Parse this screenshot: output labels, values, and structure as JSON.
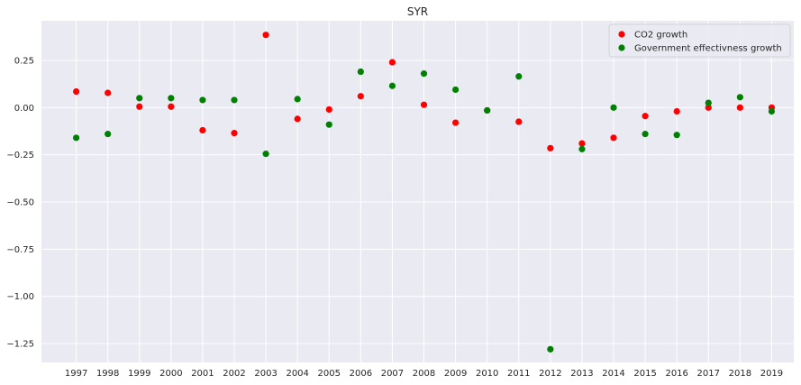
{
  "chart_data": {
    "type": "scatter",
    "title": "SYR",
    "xlabel": "",
    "ylabel": "",
    "x": [
      "1997",
      "1998",
      "1999",
      "2000",
      "2001",
      "2002",
      "2003",
      "2004",
      "2005",
      "2006",
      "2007",
      "2008",
      "2009",
      "2010",
      "2011",
      "2012",
      "2013",
      "2014",
      "2015",
      "2016",
      "2017",
      "2018",
      "2019"
    ],
    "series": [
      {
        "name": "CO2 growth",
        "color": "#ff0000",
        "values": [
          0.085,
          0.078,
          0.005,
          0.005,
          -0.12,
          -0.135,
          0.385,
          -0.06,
          -0.01,
          0.06,
          0.24,
          0.015,
          -0.08,
          -0.015,
          -0.075,
          -0.215,
          -0.19,
          -0.16,
          -0.045,
          -0.02,
          0.0,
          0.0,
          0.0
        ]
      },
      {
        "name": "Government effectivness growth",
        "color": "#008000",
        "values": [
          -0.16,
          -0.14,
          0.05,
          0.05,
          0.04,
          0.04,
          -0.245,
          0.045,
          -0.09,
          0.19,
          0.115,
          0.18,
          0.095,
          -0.015,
          0.165,
          -1.28,
          -0.22,
          0.0,
          -0.14,
          -0.145,
          0.025,
          0.055,
          -0.02
        ]
      }
    ],
    "yticks": [
      -1.25,
      -1.0,
      -0.75,
      -0.5,
      -0.25,
      0.0,
      0.25
    ],
    "ytick_labels": [
      "−1.25",
      "−1.00",
      "−0.75",
      "−0.50",
      "−0.25",
      "0.00",
      "0.25"
    ],
    "ylim": [
      -1.35,
      0.46
    ],
    "grid": true,
    "legend_position": "top-right",
    "style": {
      "background": "#eaeaf2",
      "grid": "#ffffff"
    }
  }
}
